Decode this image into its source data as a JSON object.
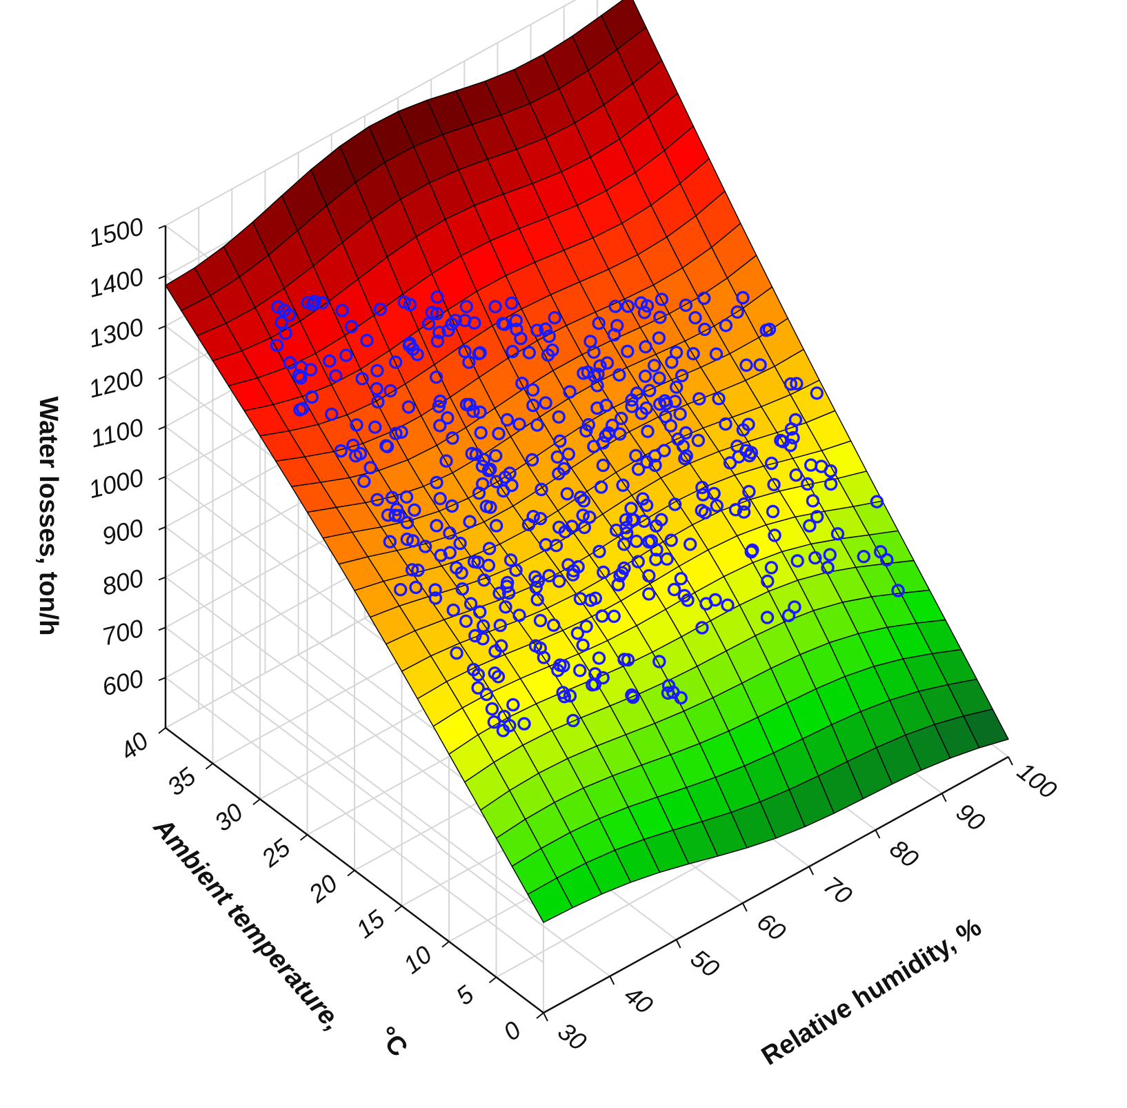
{
  "chart_data": {
    "type": "surface3d",
    "zlabel": "Water losses, ton/h",
    "xlabel": "Relative humidity, %",
    "ylabel_main": "Ambient temperature,",
    "ylabel_unit": "°C",
    "x_ticks": [
      "30",
      "40",
      "50",
      "60",
      "70",
      "80",
      "90",
      "100"
    ],
    "y_ticks": [
      "0",
      "5",
      "10",
      "15",
      "20",
      "25",
      "30",
      "35",
      "40"
    ],
    "z_ticks": [
      "600",
      "700",
      "800",
      "900",
      "1000",
      "1100",
      "1200",
      "1300",
      "1400",
      "1500"
    ],
    "xlim": [
      30,
      100
    ],
    "ylim": [
      0,
      40
    ],
    "zlim": [
      500,
      1500
    ],
    "grid": true,
    "colormap": [
      "#0a4a2a",
      "#00e000",
      "#ffff00",
      "#ff8c00",
      "#ff0000",
      "#6e0000"
    ],
    "marker_color": "#1a1aff",
    "surface_grid": {
      "rh": [
        30,
        100
      ],
      "t": [
        0,
        40
      ],
      "water_losses_at_corners": {
        "rh30_t0": 680,
        "rh30_t40": 1400,
        "rh100_t0": 530,
        "rh100_t40": 1440
      }
    },
    "observation_region": {
      "rh_range": [
        38,
        97
      ],
      "t_range": [
        8,
        38
      ],
      "water_losses_range": [
        570,
        1350
      ],
      "count_approx": 600
    }
  }
}
